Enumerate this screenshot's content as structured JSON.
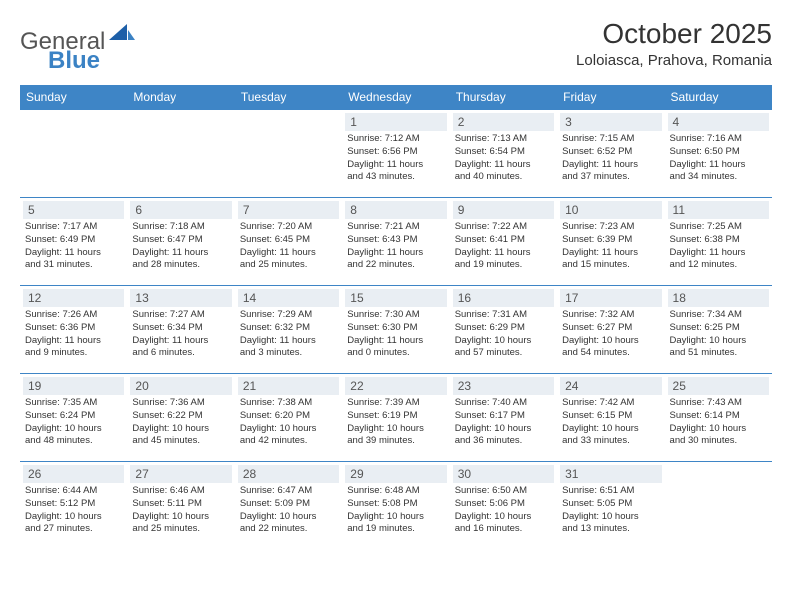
{
  "brand": {
    "part1": "General",
    "part2": "Blue"
  },
  "colors": {
    "accent": "#3e85c6",
    "dayHeaderBg": "#e9eef3",
    "text": "#333333",
    "brandGray": "#555555",
    "brandBlue": "#3b82c4",
    "background": "#ffffff"
  },
  "title": "October 2025",
  "location": "Loloiasca, Prahova, Romania",
  "weekdays": [
    "Sunday",
    "Monday",
    "Tuesday",
    "Wednesday",
    "Thursday",
    "Friday",
    "Saturday"
  ],
  "calendar": {
    "startWeekdayIndex": 3,
    "daysInMonth": 31
  },
  "days": [
    {
      "n": "1",
      "sunrise": "7:12 AM",
      "sunset": "6:56 PM",
      "dlh": "11",
      "dlm": "43"
    },
    {
      "n": "2",
      "sunrise": "7:13 AM",
      "sunset": "6:54 PM",
      "dlh": "11",
      "dlm": "40"
    },
    {
      "n": "3",
      "sunrise": "7:15 AM",
      "sunset": "6:52 PM",
      "dlh": "11",
      "dlm": "37"
    },
    {
      "n": "4",
      "sunrise": "7:16 AM",
      "sunset": "6:50 PM",
      "dlh": "11",
      "dlm": "34"
    },
    {
      "n": "5",
      "sunrise": "7:17 AM",
      "sunset": "6:49 PM",
      "dlh": "11",
      "dlm": "31"
    },
    {
      "n": "6",
      "sunrise": "7:18 AM",
      "sunset": "6:47 PM",
      "dlh": "11",
      "dlm": "28"
    },
    {
      "n": "7",
      "sunrise": "7:20 AM",
      "sunset": "6:45 PM",
      "dlh": "11",
      "dlm": "25"
    },
    {
      "n": "8",
      "sunrise": "7:21 AM",
      "sunset": "6:43 PM",
      "dlh": "11",
      "dlm": "22"
    },
    {
      "n": "9",
      "sunrise": "7:22 AM",
      "sunset": "6:41 PM",
      "dlh": "11",
      "dlm": "19"
    },
    {
      "n": "10",
      "sunrise": "7:23 AM",
      "sunset": "6:39 PM",
      "dlh": "11",
      "dlm": "15"
    },
    {
      "n": "11",
      "sunrise": "7:25 AM",
      "sunset": "6:38 PM",
      "dlh": "11",
      "dlm": "12"
    },
    {
      "n": "12",
      "sunrise": "7:26 AM",
      "sunset": "6:36 PM",
      "dlh": "11",
      "dlm": "9"
    },
    {
      "n": "13",
      "sunrise": "7:27 AM",
      "sunset": "6:34 PM",
      "dlh": "11",
      "dlm": "6"
    },
    {
      "n": "14",
      "sunrise": "7:29 AM",
      "sunset": "6:32 PM",
      "dlh": "11",
      "dlm": "3"
    },
    {
      "n": "15",
      "sunrise": "7:30 AM",
      "sunset": "6:30 PM",
      "dlh": "11",
      "dlm": "0"
    },
    {
      "n": "16",
      "sunrise": "7:31 AM",
      "sunset": "6:29 PM",
      "dlh": "10",
      "dlm": "57"
    },
    {
      "n": "17",
      "sunrise": "7:32 AM",
      "sunset": "6:27 PM",
      "dlh": "10",
      "dlm": "54"
    },
    {
      "n": "18",
      "sunrise": "7:34 AM",
      "sunset": "6:25 PM",
      "dlh": "10",
      "dlm": "51"
    },
    {
      "n": "19",
      "sunrise": "7:35 AM",
      "sunset": "6:24 PM",
      "dlh": "10",
      "dlm": "48"
    },
    {
      "n": "20",
      "sunrise": "7:36 AM",
      "sunset": "6:22 PM",
      "dlh": "10",
      "dlm": "45"
    },
    {
      "n": "21",
      "sunrise": "7:38 AM",
      "sunset": "6:20 PM",
      "dlh": "10",
      "dlm": "42"
    },
    {
      "n": "22",
      "sunrise": "7:39 AM",
      "sunset": "6:19 PM",
      "dlh": "10",
      "dlm": "39"
    },
    {
      "n": "23",
      "sunrise": "7:40 AM",
      "sunset": "6:17 PM",
      "dlh": "10",
      "dlm": "36"
    },
    {
      "n": "24",
      "sunrise": "7:42 AM",
      "sunset": "6:15 PM",
      "dlh": "10",
      "dlm": "33"
    },
    {
      "n": "25",
      "sunrise": "7:43 AM",
      "sunset": "6:14 PM",
      "dlh": "10",
      "dlm": "30"
    },
    {
      "n": "26",
      "sunrise": "6:44 AM",
      "sunset": "5:12 PM",
      "dlh": "10",
      "dlm": "27"
    },
    {
      "n": "27",
      "sunrise": "6:46 AM",
      "sunset": "5:11 PM",
      "dlh": "10",
      "dlm": "25"
    },
    {
      "n": "28",
      "sunrise": "6:47 AM",
      "sunset": "5:09 PM",
      "dlh": "10",
      "dlm": "22"
    },
    {
      "n": "29",
      "sunrise": "6:48 AM",
      "sunset": "5:08 PM",
      "dlh": "10",
      "dlm": "19"
    },
    {
      "n": "30",
      "sunrise": "6:50 AM",
      "sunset": "5:06 PM",
      "dlh": "10",
      "dlm": "16"
    },
    {
      "n": "31",
      "sunrise": "6:51 AM",
      "sunset": "5:05 PM",
      "dlh": "10",
      "dlm": "13"
    }
  ]
}
